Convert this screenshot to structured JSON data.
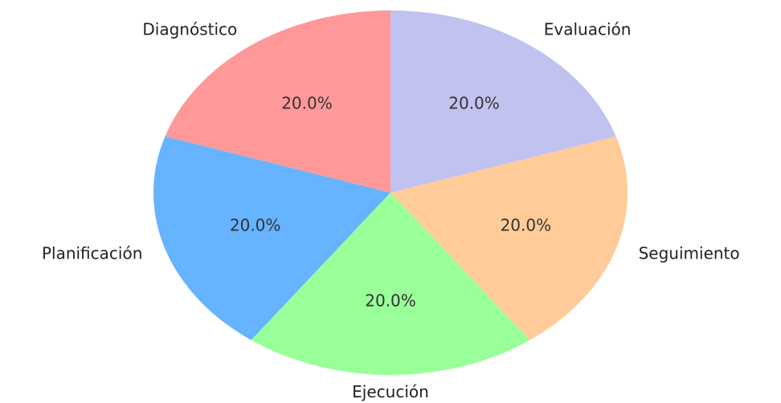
{
  "chart_data": {
    "type": "pie",
    "categories": [
      "Diagnóstico",
      "Planificación",
      "Ejecución",
      "Seguimiento",
      "Evaluación"
    ],
    "values": [
      20,
      20,
      20,
      20,
      20
    ],
    "value_labels": [
      "20.0%",
      "20.0%",
      "20.0%",
      "20.0%",
      "20.0%"
    ],
    "colors": [
      "#ff9999",
      "#66b3ff",
      "#99ff99",
      "#ffcc99",
      "#c2c2f0"
    ]
  }
}
